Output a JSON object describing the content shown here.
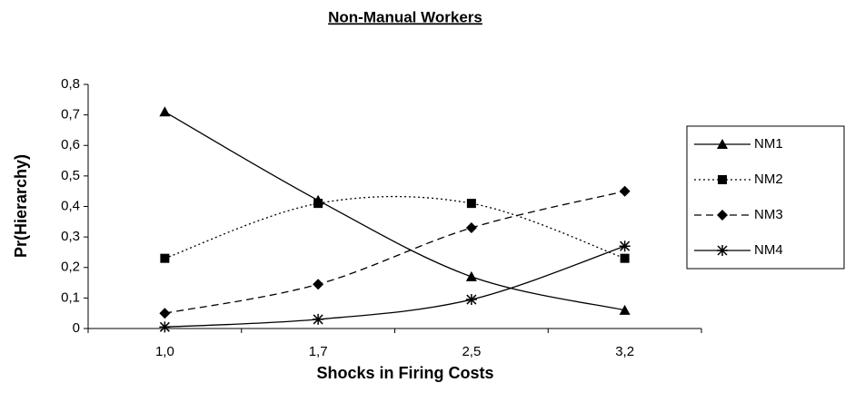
{
  "chart_data": {
    "type": "line",
    "title": "Non-Manual Workers",
    "x_label": "Shocks in Firing Costs",
    "y_label": "Pr(Hierarchy)",
    "categories": [
      "1,0",
      "1,7",
      "2,5",
      "3,2"
    ],
    "ylim": [
      0,
      0.8
    ],
    "yticks": [
      0,
      {
        "value": 0.1,
        "label": "0,1"
      },
      {
        "value": 0.2,
        "label": "0,2"
      },
      {
        "value": 0.3,
        "label": "0,3"
      },
      {
        "value": 0.4,
        "label": "0,4"
      },
      {
        "value": 0.5,
        "label": "0,5"
      },
      {
        "value": 0.6,
        "label": "0,6"
      },
      {
        "value": 0.7,
        "label": "0,7"
      },
      {
        "value": 0.8,
        "label": "0,8"
      }
    ],
    "smooth": true,
    "legend": "right",
    "series": [
      {
        "name": "NM1",
        "color": "#000000",
        "dash": "solid",
        "marker": "triangle",
        "values": [
          0.71,
          0.42,
          0.17,
          0.06
        ]
      },
      {
        "name": "NM2",
        "color": "#000000",
        "dash": "dotted",
        "marker": "square",
        "values": [
          0.23,
          0.41,
          0.41,
          0.23
        ]
      },
      {
        "name": "NM3",
        "color": "#000000",
        "dash": "dashed",
        "marker": "diamond",
        "values": [
          0.05,
          0.145,
          0.33,
          0.45
        ]
      },
      {
        "name": "NM4",
        "color": "#000000",
        "dash": "solid",
        "marker": "asterisk",
        "values": [
          0.005,
          0.03,
          0.095,
          0.27
        ]
      }
    ]
  }
}
